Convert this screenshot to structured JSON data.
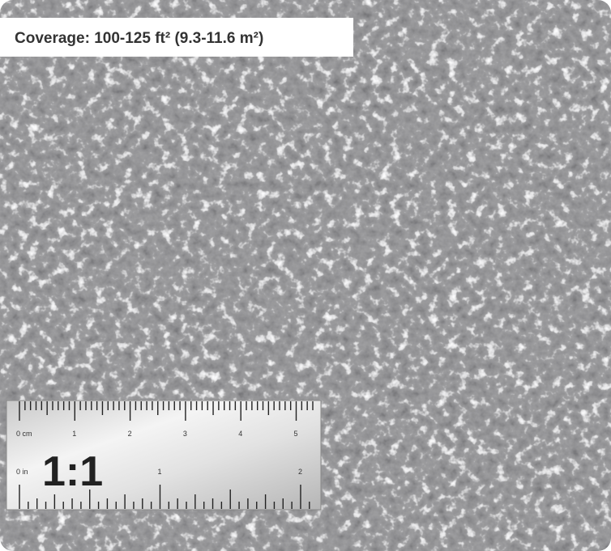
{
  "caption": "Coverage: 100-125 ft² (9.3-11.6 m²)",
  "ruler": {
    "scale": "1:1",
    "cm_label": "0 cm",
    "cm_marks": [
      "1",
      "2",
      "3",
      "4",
      "5"
    ],
    "in_label": "0 in",
    "in_marks": [
      "1",
      "2"
    ]
  }
}
